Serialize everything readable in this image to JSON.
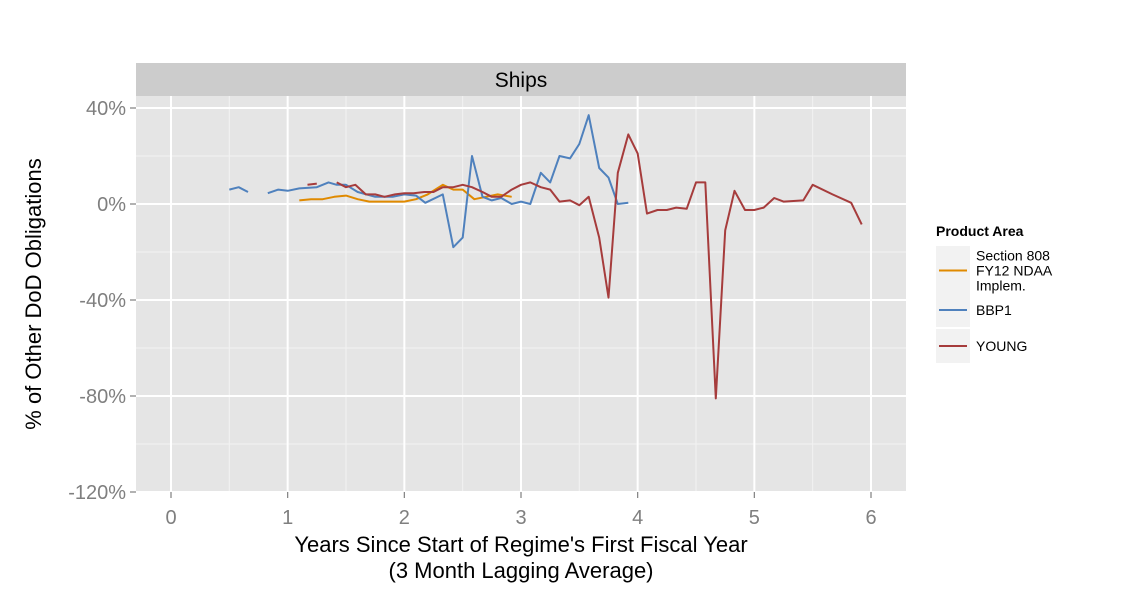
{
  "chart_data": {
    "type": "line",
    "facet": "Ships",
    "xlabel_line1": "Years Since Start of Regime's First Fiscal Year",
    "xlabel_line2": "(3 Month Lagging Average)",
    "ylabel": "% of Other DoD Obligations",
    "xlim": [
      -0.3,
      6.3
    ],
    "ylim": [
      -120,
      45
    ],
    "x_ticks": [
      0,
      1,
      2,
      3,
      4,
      5,
      6
    ],
    "x_tick_labels": [
      "0",
      "1",
      "2",
      "3",
      "4",
      "5",
      "6"
    ],
    "y_ticks": [
      -120,
      -80,
      -40,
      0,
      40
    ],
    "y_tick_labels": [
      "-120%",
      "-80%",
      "-40%",
      "0%",
      "40%"
    ],
    "grid": true,
    "legend": {
      "title": "Product Area",
      "placement": "right",
      "entries": [
        {
          "lines": [
            "Section 808",
            "FY12 NDAA",
            "Implem."
          ],
          "color": "#E08A00"
        },
        {
          "lines": [
            "BBP1"
          ],
          "color": "#4F81BD"
        },
        {
          "lines": [
            "YOUNG"
          ],
          "color": "#A63C3C"
        }
      ]
    },
    "series": [
      {
        "name": "Section 808 FY12 NDAA Implem.",
        "color": "#E08A00",
        "segments": [
          [
            [
              1.1,
              1.5
            ],
            [
              1.2,
              2
            ],
            [
              1.3,
              2
            ],
            [
              1.4,
              3
            ],
            [
              1.5,
              3.5
            ],
            [
              1.6,
              2
            ],
            [
              1.7,
              1
            ],
            [
              1.8,
              1
            ],
            [
              1.9,
              1
            ],
            [
              2.0,
              1
            ],
            [
              2.1,
              2
            ],
            [
              2.2,
              4
            ],
            [
              2.33,
              8
            ],
            [
              2.42,
              6
            ],
            [
              2.5,
              6
            ],
            [
              2.6,
              2
            ],
            [
              2.7,
              3
            ],
            [
              2.8,
              4
            ],
            [
              2.92,
              3
            ]
          ]
        ]
      },
      {
        "name": "BBP1",
        "color": "#4F81BD",
        "segments": [
          [
            [
              0.5,
              6
            ],
            [
              0.58,
              7
            ],
            [
              0.66,
              5
            ]
          ],
          [
            [
              0.83,
              4.5
            ],
            [
              0.92,
              6
            ],
            [
              1.0,
              5.5
            ],
            [
              1.1,
              6.5
            ],
            [
              1.25,
              7
            ],
            [
              1.35,
              9
            ],
            [
              1.42,
              8
            ],
            [
              1.5,
              8
            ],
            [
              1.6,
              5
            ],
            [
              1.75,
              3
            ],
            [
              1.9,
              3
            ],
            [
              2.0,
              4
            ],
            [
              2.1,
              3.5
            ],
            [
              2.18,
              0.5
            ],
            [
              2.33,
              4
            ],
            [
              2.42,
              -18
            ],
            [
              2.5,
              -14
            ],
            [
              2.58,
              20
            ],
            [
              2.67,
              3
            ],
            [
              2.75,
              1.5
            ],
            [
              2.83,
              2.5
            ],
            [
              2.92,
              0
            ],
            [
              3.0,
              1
            ],
            [
              3.08,
              0
            ],
            [
              3.17,
              13
            ],
            [
              3.25,
              9
            ],
            [
              3.33,
              20
            ],
            [
              3.42,
              19
            ],
            [
              3.5,
              25
            ],
            [
              3.58,
              37
            ],
            [
              3.67,
              15
            ],
            [
              3.75,
              11
            ],
            [
              3.83,
              0
            ],
            [
              3.92,
              0.5
            ]
          ]
        ]
      },
      {
        "name": "YOUNG",
        "color": "#A63C3C",
        "segments": [
          [
            [
              1.17,
              8
            ],
            [
              1.25,
              8.5
            ]
          ],
          [
            [
              1.42,
              9
            ],
            [
              1.5,
              7
            ],
            [
              1.58,
              8
            ],
            [
              1.67,
              4
            ],
            [
              1.75,
              4
            ],
            [
              1.83,
              3
            ],
            [
              1.92,
              4
            ],
            [
              2.0,
              4.5
            ],
            [
              2.08,
              4.5
            ],
            [
              2.17,
              5
            ],
            [
              2.25,
              5
            ],
            [
              2.33,
              7
            ],
            [
              2.42,
              7
            ],
            [
              2.5,
              8
            ],
            [
              2.58,
              7
            ],
            [
              2.67,
              5
            ],
            [
              2.75,
              3
            ],
            [
              2.83,
              3
            ],
            [
              2.92,
              6
            ],
            [
              3.0,
              8
            ],
            [
              3.08,
              9
            ],
            [
              3.17,
              7
            ],
            [
              3.25,
              6
            ],
            [
              3.33,
              1
            ],
            [
              3.42,
              1.5
            ],
            [
              3.5,
              -0.5
            ],
            [
              3.58,
              3
            ],
            [
              3.67,
              -14
            ],
            [
              3.75,
              -39
            ],
            [
              3.83,
              13
            ],
            [
              3.92,
              29
            ],
            [
              4.0,
              21
            ],
            [
              4.08,
              -4
            ],
            [
              4.17,
              -2.5
            ],
            [
              4.25,
              -2.5
            ],
            [
              4.33,
              -1.5
            ],
            [
              4.42,
              -2
            ],
            [
              4.5,
              9
            ],
            [
              4.58,
              9
            ],
            [
              4.67,
              -81
            ],
            [
              4.75,
              -11
            ],
            [
              4.83,
              5.5
            ],
            [
              4.92,
              -2.5
            ],
            [
              5.0,
              -2.5
            ],
            [
              5.08,
              -1.5
            ],
            [
              5.17,
              2.5
            ],
            [
              5.25,
              1
            ],
            [
              5.42,
              1.5
            ],
            [
              5.5,
              8
            ],
            [
              5.67,
              4
            ],
            [
              5.83,
              0.5
            ],
            [
              5.92,
              -8.5
            ]
          ]
        ]
      }
    ]
  }
}
